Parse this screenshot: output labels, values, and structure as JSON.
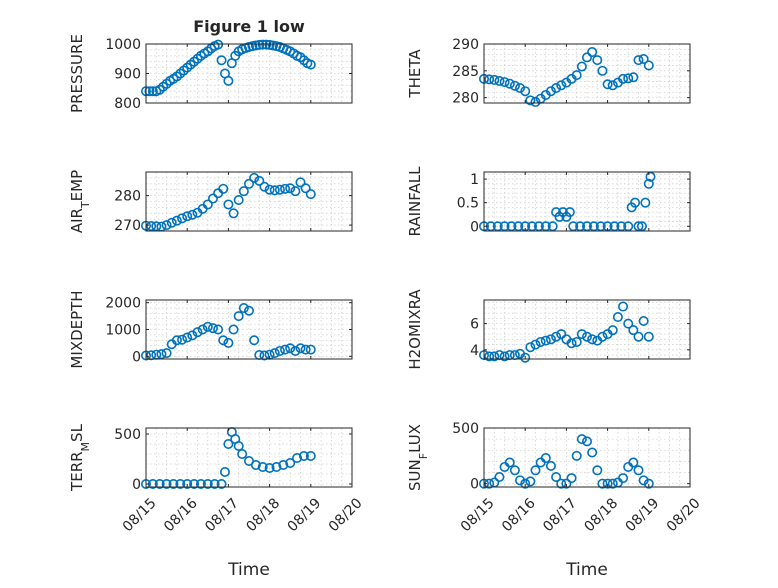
{
  "chart_data": [
    {
      "type": "scatter",
      "title": "Figure 1 low",
      "ylabel": "PRESSURE",
      "ylim": [
        800,
        1000
      ],
      "yticks": [
        800,
        900,
        1000
      ],
      "xlim": [
        "08/15",
        "08/20"
      ],
      "xticks": [],
      "grid": true,
      "series": [
        {
          "x": [
            "08/15 00:00",
            "08/15 02:00",
            "08/15 04:00",
            "08/15 06:00",
            "08/15 08:00",
            "08/15 10:00",
            "08/15 12:00",
            "08/15 14:00",
            "08/15 16:00",
            "08/15 18:00",
            "08/15 20:00",
            "08/15 22:00",
            "08/16 00:00",
            "08/16 02:00",
            "08/16 04:00",
            "08/16 06:00",
            "08/16 08:00",
            "08/16 10:00",
            "08/16 12:00",
            "08/16 14:00",
            "08/16 16:00",
            "08/16 18:00",
            "08/16 20:00",
            "08/16 22:00",
            "08/17 00:00",
            "08/17 02:00",
            "08/17 04:00",
            "08/17 06:00",
            "08/17 08:00",
            "08/17 10:00",
            "08/17 12:00",
            "08/17 14:00",
            "08/17 16:00",
            "08/17 18:00",
            "08/17 20:00",
            "08/17 22:00",
            "08/18 00:00",
            "08/18 02:00",
            "08/18 04:00",
            "08/18 06:00",
            "08/18 08:00",
            "08/18 10:00",
            "08/18 12:00",
            "08/18 14:00",
            "08/18 16:00",
            "08/18 18:00",
            "08/18 20:00",
            "08/18 22:00",
            "08/19 00:00"
          ],
          "y": [
            840,
            840,
            840,
            840,
            845,
            855,
            865,
            875,
            882,
            890,
            900,
            910,
            920,
            930,
            940,
            950,
            960,
            968,
            975,
            985,
            993,
            998,
            945,
            900,
            875,
            935,
            960,
            975,
            982,
            986,
            990,
            993,
            995,
            997,
            998,
            998,
            997,
            995,
            993,
            990,
            985,
            980,
            975,
            968,
            960,
            955,
            945,
            935,
            930
          ]
        }
      ]
    },
    {
      "type": "scatter",
      "ylabel": "THETA",
      "ylim": [
        279,
        290
      ],
      "yticks": [
        280,
        285,
        290
      ],
      "xlim": [
        "08/15",
        "08/20"
      ],
      "xticks": [],
      "grid": true,
      "series": [
        {
          "x": [
            "08/15 00:00",
            "08/15 03:00",
            "08/15 06:00",
            "08/15 09:00",
            "08/15 12:00",
            "08/15 15:00",
            "08/15 18:00",
            "08/15 21:00",
            "08/16 00:00",
            "08/16 03:00",
            "08/16 06:00",
            "08/16 09:00",
            "08/16 12:00",
            "08/16 15:00",
            "08/16 18:00",
            "08/16 21:00",
            "08/17 00:00",
            "08/17 03:00",
            "08/17 06:00",
            "08/17 09:00",
            "08/17 12:00",
            "08/17 15:00",
            "08/17 18:00",
            "08/17 21:00",
            "08/18 00:00",
            "08/18 03:00",
            "08/18 06:00",
            "08/18 09:00",
            "08/18 12:00",
            "08/18 15:00",
            "08/18 18:00",
            "08/18 21:00",
            "08/19 00:00"
          ],
          "y": [
            283.5,
            283.4,
            283.3,
            283.1,
            282.9,
            282.6,
            282.2,
            281.8,
            281.2,
            279.5,
            279.2,
            279.8,
            280.5,
            281.2,
            281.8,
            282.3,
            282.8,
            283.5,
            284.2,
            285.8,
            287.5,
            288.5,
            287.0,
            285.0,
            282.5,
            282.3,
            282.8,
            283.5,
            283.6,
            283.8,
            287.0,
            287.2,
            286.0
          ]
        }
      ]
    },
    {
      "type": "scatter",
      "ylabel": "AIR_TEMP",
      "ylim": [
        268,
        288
      ],
      "yticks": [
        270,
        280
      ],
      "xlim": [
        "08/15",
        "08/20"
      ],
      "xticks": [],
      "grid": true,
      "series": [
        {
          "x": [
            "08/15 00:00",
            "08/15 03:00",
            "08/15 06:00",
            "08/15 09:00",
            "08/15 12:00",
            "08/15 15:00",
            "08/15 18:00",
            "08/15 21:00",
            "08/16 00:00",
            "08/16 03:00",
            "08/16 06:00",
            "08/16 09:00",
            "08/16 12:00",
            "08/16 15:00",
            "08/16 18:00",
            "08/16 21:00",
            "08/17 00:00",
            "08/17 03:00",
            "08/17 06:00",
            "08/17 09:00",
            "08/17 12:00",
            "08/17 15:00",
            "08/17 18:00",
            "08/17 21:00",
            "08/18 00:00",
            "08/18 03:00",
            "08/18 06:00",
            "08/18 09:00",
            "08/18 12:00",
            "08/18 15:00",
            "08/18 18:00",
            "08/18 21:00",
            "08/19 00:00"
          ],
          "y": [
            269.8,
            269.7,
            269.6,
            269.5,
            270.0,
            270.8,
            271.5,
            272.3,
            273.0,
            273.5,
            274.2,
            275.5,
            277.0,
            279.0,
            280.8,
            282.3,
            277.0,
            274.0,
            278.5,
            281.5,
            284.0,
            286.0,
            285.0,
            283.0,
            282.0,
            281.8,
            282.0,
            282.3,
            282.5,
            281.5,
            284.5,
            282.5,
            280.5
          ]
        }
      ]
    },
    {
      "type": "scatter",
      "ylabel": "RAINFALL",
      "ylim": [
        -0.1,
        1.15
      ],
      "yticks": [
        0,
        0.5,
        1
      ],
      "xlim": [
        "08/15",
        "08/20"
      ],
      "xticks": [],
      "grid": true,
      "series": [
        {
          "x": [
            "08/15 00:00",
            "08/15 04:00",
            "08/15 08:00",
            "08/15 12:00",
            "08/15 16:00",
            "08/15 20:00",
            "08/16 00:00",
            "08/16 04:00",
            "08/16 08:00",
            "08/16 12:00",
            "08/16 16:00",
            "08/16 18:00",
            "08/16 20:00",
            "08/16 22:00",
            "08/17 00:00",
            "08/17 02:00",
            "08/17 04:00",
            "08/17 08:00",
            "08/17 12:00",
            "08/17 16:00",
            "08/17 20:00",
            "08/18 00:00",
            "08/18 04:00",
            "08/18 08:00",
            "08/18 12:00",
            "08/18 14:00",
            "08/18 16:00",
            "08/18 18:00",
            "08/18 20:00",
            "08/18 22:00",
            "08/19 00:00",
            "08/19 01:00"
          ],
          "y": [
            0,
            0,
            0,
            0,
            0,
            0,
            0,
            0,
            0,
            0,
            0,
            0.3,
            0.2,
            0.3,
            0.2,
            0.3,
            0,
            0,
            0,
            0,
            0,
            0,
            0,
            0,
            0,
            0.4,
            0.5,
            0,
            0,
            0.5,
            0.9,
            1.05
          ]
        }
      ]
    },
    {
      "type": "scatter",
      "ylabel": "MIXDEPTH",
      "ylim": [
        -100,
        2100
      ],
      "yticks": [
        0,
        1000,
        2000
      ],
      "xlim": [
        "08/15",
        "08/20"
      ],
      "xticks": [],
      "grid": true,
      "series": [
        {
          "x": [
            "08/15 00:00",
            "08/15 03:00",
            "08/15 06:00",
            "08/15 09:00",
            "08/15 12:00",
            "08/15 15:00",
            "08/15 18:00",
            "08/15 21:00",
            "08/16 00:00",
            "08/16 03:00",
            "08/16 06:00",
            "08/16 09:00",
            "08/16 12:00",
            "08/16 15:00",
            "08/16 18:00",
            "08/16 21:00",
            "08/17 00:00",
            "08/17 03:00",
            "08/17 06:00",
            "08/17 09:00",
            "08/17 12:00",
            "08/17 15:00",
            "08/17 18:00",
            "08/17 21:00",
            "08/18 00:00",
            "08/18 03:00",
            "08/18 06:00",
            "08/18 09:00",
            "08/18 12:00",
            "08/18 15:00",
            "08/18 18:00",
            "08/18 21:00",
            "08/19 00:00"
          ],
          "y": [
            30,
            40,
            60,
            80,
            120,
            450,
            600,
            620,
            700,
            780,
            900,
            1000,
            1100,
            1050,
            1000,
            600,
            500,
            1000,
            1500,
            1800,
            1700,
            600,
            50,
            30,
            60,
            120,
            200,
            250,
            300,
            200,
            300,
            250,
            250
          ]
        }
      ]
    },
    {
      "type": "scatter",
      "ylabel": "H2OMIXRA",
      "ylim": [
        3.3,
        7.8
      ],
      "yticks": [
        4,
        6
      ],
      "xlim": [
        "08/15",
        "08/20"
      ],
      "xticks": [],
      "grid": true,
      "series": [
        {
          "x": [
            "08/15 00:00",
            "08/15 03:00",
            "08/15 06:00",
            "08/15 09:00",
            "08/15 12:00",
            "08/15 15:00",
            "08/15 18:00",
            "08/15 21:00",
            "08/16 00:00",
            "08/16 03:00",
            "08/16 06:00",
            "08/16 09:00",
            "08/16 12:00",
            "08/16 15:00",
            "08/16 18:00",
            "08/16 21:00",
            "08/17 00:00",
            "08/17 03:00",
            "08/17 06:00",
            "08/17 09:00",
            "08/17 12:00",
            "08/17 15:00",
            "08/17 18:00",
            "08/17 21:00",
            "08/18 00:00",
            "08/18 03:00",
            "08/18 06:00",
            "08/18 09:00",
            "08/18 12:00",
            "08/18 15:00",
            "08/18 18:00",
            "08/18 21:00",
            "08/19 00:00"
          ],
          "y": [
            3.6,
            3.5,
            3.5,
            3.6,
            3.5,
            3.6,
            3.6,
            3.7,
            3.4,
            4.2,
            4.4,
            4.6,
            4.7,
            4.8,
            5.0,
            5.2,
            4.8,
            4.5,
            4.6,
            5.2,
            5.0,
            4.8,
            4.7,
            5.0,
            5.2,
            5.5,
            6.5,
            7.3,
            6.0,
            5.5,
            5.0,
            6.2,
            5.0
          ]
        }
      ]
    },
    {
      "type": "scatter",
      "ylabel": "TERR_MSL",
      "ylim": [
        -30,
        560
      ],
      "yticks": [
        0,
        500
      ],
      "xlim": [
        "08/15",
        "08/20"
      ],
      "xticks": [
        "08/15",
        "08/16",
        "08/17",
        "08/18",
        "08/19",
        "08/20"
      ],
      "xlabel": "Time",
      "grid": true,
      "series": [
        {
          "x": [
            "08/15 00:00",
            "08/15 04:00",
            "08/15 08:00",
            "08/15 12:00",
            "08/15 16:00",
            "08/15 20:00",
            "08/16 00:00",
            "08/16 04:00",
            "08/16 08:00",
            "08/16 12:00",
            "08/16 16:00",
            "08/16 20:00",
            "08/16 22:00",
            "08/17 00:00",
            "08/17 02:00",
            "08/17 04:00",
            "08/17 06:00",
            "08/17 08:00",
            "08/17 12:00",
            "08/17 16:00",
            "08/17 20:00",
            "08/18 00:00",
            "08/18 04:00",
            "08/18 08:00",
            "08/18 12:00",
            "08/18 16:00",
            "08/18 20:00",
            "08/19 00:00"
          ],
          "y": [
            0,
            0,
            0,
            0,
            0,
            0,
            0,
            0,
            0,
            0,
            0,
            0,
            120,
            400,
            520,
            450,
            380,
            300,
            230,
            190,
            170,
            160,
            170,
            190,
            210,
            260,
            280,
            280
          ]
        }
      ]
    },
    {
      "type": "scatter",
      "ylabel": "SUN_FLUX",
      "ylim": [
        -30,
        500
      ],
      "yticks": [
        0,
        500
      ],
      "xlim": [
        "08/15",
        "08/20"
      ],
      "xticks": [
        "08/15",
        "08/16",
        "08/17",
        "08/18",
        "08/19",
        "08/20"
      ],
      "xlabel": "Time",
      "grid": true,
      "series": [
        {
          "x": [
            "08/15 00:00",
            "08/15 03:00",
            "08/15 06:00",
            "08/15 09:00",
            "08/15 12:00",
            "08/15 15:00",
            "08/15 18:00",
            "08/15 21:00",
            "08/16 00:00",
            "08/16 03:00",
            "08/16 06:00",
            "08/16 09:00",
            "08/16 12:00",
            "08/16 15:00",
            "08/16 18:00",
            "08/16 21:00",
            "08/17 00:00",
            "08/17 03:00",
            "08/17 06:00",
            "08/17 09:00",
            "08/17 12:00",
            "08/17 15:00",
            "08/17 18:00",
            "08/17 21:00",
            "08/18 00:00",
            "08/18 03:00",
            "08/18 06:00",
            "08/18 09:00",
            "08/18 12:00",
            "08/18 15:00",
            "08/18 18:00",
            "08/18 21:00",
            "08/19 00:00"
          ],
          "y": [
            0,
            0,
            10,
            60,
            150,
            190,
            120,
            30,
            0,
            20,
            120,
            190,
            230,
            160,
            60,
            0,
            0,
            50,
            250,
            400,
            380,
            280,
            120,
            0,
            0,
            0,
            10,
            50,
            150,
            190,
            120,
            30,
            0
          ]
        }
      ]
    }
  ]
}
